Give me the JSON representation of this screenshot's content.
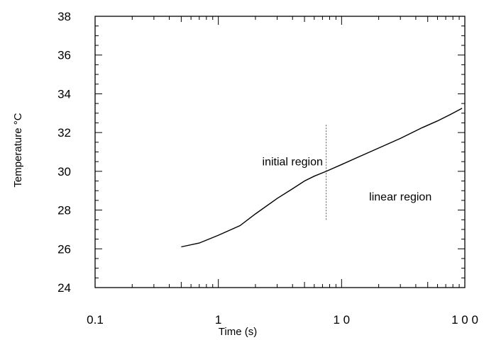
{
  "chart_data": {
    "type": "line",
    "title": "",
    "xlabel": "Time (s)",
    "ylabel": "Temperature °C",
    "xscale": "log",
    "xlim": [
      0.1,
      100
    ],
    "ylim": [
      24,
      38
    ],
    "grid": false,
    "x_ticks": [
      {
        "value": 0.1,
        "label": "0.1"
      },
      {
        "value": 1,
        "label": "1"
      },
      {
        "value": 10,
        "label": "1 0"
      },
      {
        "value": 100,
        "label": "1 0 0"
      }
    ],
    "y_ticks": [
      {
        "value": 24,
        "label": "24"
      },
      {
        "value": 26,
        "label": "26"
      },
      {
        "value": 28,
        "label": "28"
      },
      {
        "value": 30,
        "label": "30"
      },
      {
        "value": 32,
        "label": "32"
      },
      {
        "value": 34,
        "label": "34"
      },
      {
        "value": 36,
        "label": "36"
      },
      {
        "value": 38,
        "label": "38"
      }
    ],
    "series": [
      {
        "color": "#000000",
        "x": [
          0.5,
          0.7,
          1.0,
          1.5,
          2.0,
          3.0,
          4.0,
          5.0,
          6.0,
          7.5,
          10,
          15,
          20,
          30,
          45,
          60,
          80,
          95
        ],
        "y": [
          26.1,
          26.3,
          26.7,
          27.2,
          27.8,
          28.6,
          29.1,
          29.5,
          29.75,
          30.0,
          30.35,
          30.85,
          31.2,
          31.7,
          32.25,
          32.6,
          33.0,
          33.25
        ]
      }
    ],
    "divider": {
      "x": 7.5,
      "y_range": [
        27.5,
        32.4
      ]
    },
    "annotations": [
      {
        "text": "initial region",
        "x": 4.0,
        "y": 30.3
      },
      {
        "text": "linear region",
        "x": 30,
        "y": 28.5
      }
    ]
  }
}
